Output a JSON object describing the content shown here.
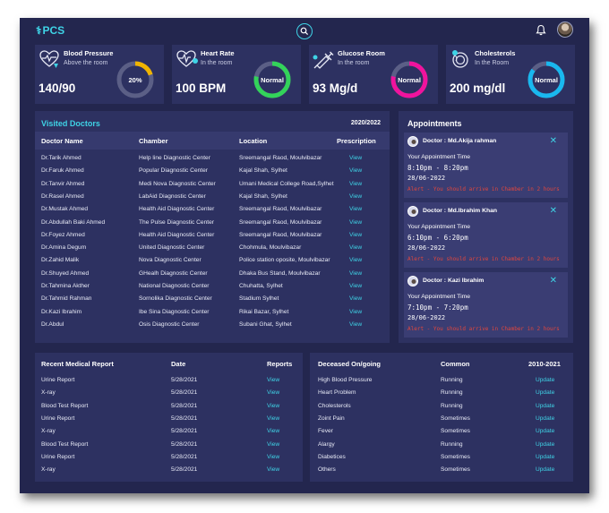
{
  "app": {
    "logo_text": "PCS",
    "logo_icon": "medical-cross-icon"
  },
  "header": {
    "search_icon": "search-icon",
    "bell_icon": "bell-icon",
    "avatar": "user-avatar"
  },
  "stats": [
    {
      "title": "Blood Pressure",
      "subtitle": "Above the room",
      "value": "140/90",
      "donut_label": "20%",
      "percent": 20,
      "color": "#f0b400",
      "icon": "heart-pulse-icon"
    },
    {
      "title": "Heart Rate",
      "subtitle": "In the room",
      "value": "100 BPM",
      "donut_label": "Normal",
      "percent": 78,
      "color": "#33d35a",
      "icon": "heart-rate-icon"
    },
    {
      "title": "Glucose Room",
      "subtitle": "In the room",
      "value": "93 Mg/d",
      "donut_label": "Normal",
      "percent": 78,
      "color": "#f0139d",
      "icon": "syringe-icon"
    },
    {
      "title": "Cholesterols",
      "subtitle": "In the Room",
      "value": "200 mg/dl",
      "donut_label": "Normal",
      "percent": 85,
      "color": "#19b8ef",
      "icon": "cholesterol-icon"
    }
  ],
  "visited_doctors": {
    "title": "Visited Doctors",
    "year": "2020/2022",
    "columns": [
      "Doctor Name",
      "Chamber",
      "Location",
      "Prescription"
    ],
    "rows": [
      [
        "Dr.Tarik Ahmed",
        "Help line Diagnostic Center",
        "Sreemangal Raod, Moulvibazar",
        "View"
      ],
      [
        "Dr.Faruk Ahmed",
        "Popular Diagnostic Center",
        "Kajal Shah, Sylhet",
        "View"
      ],
      [
        "Dr.Tanvir Ahmed",
        "Medi Nova Diagnostic Center",
        "Umani Medical College Road,Sylhet",
        "View"
      ],
      [
        "Dr.Rasel  Ahmed",
        "LabAid Diagnostic Center",
        "Kajal Shah, Sylhet",
        "View"
      ],
      [
        "Dr.Mustak Ahmed",
        "Health Aid Diagnostic Center",
        "Sreemangal Raod, Moulvibazar",
        "View"
      ],
      [
        "Dr.Abdullah Baki Ahmed",
        "The Pulse Diagnostic Center",
        "Sreemangal Raod, Moulvibazar",
        "View"
      ],
      [
        "Dr.Foyez Ahmed",
        "Health Aid Diagnostic Center",
        "Sreemangal Raod, Moulvibazar",
        "View"
      ],
      [
        "Dr.Amina Degum",
        "United Diagnostic Center",
        "Chohmula, Moulvibazar",
        "View"
      ],
      [
        "Dr.Zahid Malik",
        "Nova Diagnostic Center",
        "Police station oposite, Moulvibazar",
        "View"
      ],
      [
        "Dr.Shuyed Ahmed",
        "GHealh Diagnostic Center",
        "Dhaka Bus Stand, Moulvibazar",
        "View"
      ],
      [
        "Dr.Tahmina Akther",
        "National Diagnostic Center",
        "Chuhatta, Sylhet",
        "View"
      ],
      [
        "Dr.Tahmid Rahman",
        "Sornolika Diagnostic Center",
        "Stadium Sylhet",
        "View"
      ],
      [
        "Dr.Kazi Ibrahim",
        "Ibe Sina Diagnostic Center",
        "Rikai Bazar, Sylhet",
        "View"
      ],
      [
        "Dr.Abdul",
        "Osis Diagnostic Center",
        "Subani Ghat, Sylhet",
        "View"
      ]
    ]
  },
  "appointments": {
    "title": "Appointments",
    "items": [
      {
        "doctor": "Doctor : Md.Akija rahman",
        "label": "Your Appointment Time",
        "time": "8:10pm - 8:20pm",
        "date": "28/06-2022",
        "alert": "Alert - You should arrive in Chamber in 2 hours"
      },
      {
        "doctor": "Doctor : Md.Ibrahim Khan",
        "label": "Your Appointment Time",
        "time": "6:10pm - 6:20pm",
        "date": "28/06-2022",
        "alert": "Alert - You should arrive in Chamber in 2 hours"
      },
      {
        "doctor": "Doctor :  Kazi Ibrahim",
        "label": "Your Appointment Time",
        "time": "7:10pm - 7:20pm",
        "date": "28/06-2022",
        "alert": "Alert - You should arrive in Chamber in 2 hours"
      }
    ]
  },
  "reports": {
    "columns": [
      "Recent Medical Report",
      "Date",
      "Reports"
    ],
    "rows": [
      [
        "Urine Report",
        "5/28/2021",
        "View"
      ],
      [
        "X-ray",
        "5/28/2021",
        "View"
      ],
      [
        "Blood Test Report",
        "5/28/2021",
        "View"
      ],
      [
        "Urine Report",
        "5/28/2021",
        "View"
      ],
      [
        "X-ray",
        "5/28/2021",
        "View"
      ],
      [
        "Blood Test Report",
        "5/28/2021",
        "View"
      ],
      [
        "Urine Report",
        "5/28/2021",
        "View"
      ],
      [
        "X-ray",
        "5/28/2021",
        "View"
      ]
    ]
  },
  "deceased": {
    "columns": [
      "Deceased On/going",
      "Common",
      "2010-2021"
    ],
    "rows": [
      [
        "High Blood Pressure",
        "Running",
        "Update"
      ],
      [
        "Heart Problem",
        "Running",
        "Update"
      ],
      [
        "Cholesterols",
        "Running",
        "Update"
      ],
      [
        "Zoint  Pain",
        "Sometimes",
        "Update"
      ],
      [
        "Fever",
        "Sometimes",
        "Update"
      ],
      [
        "Alargy",
        "Running",
        "Update"
      ],
      [
        "Diabetices",
        "Sometimes",
        "Update"
      ],
      [
        "Others",
        "Sometimes",
        "Update"
      ]
    ]
  }
}
